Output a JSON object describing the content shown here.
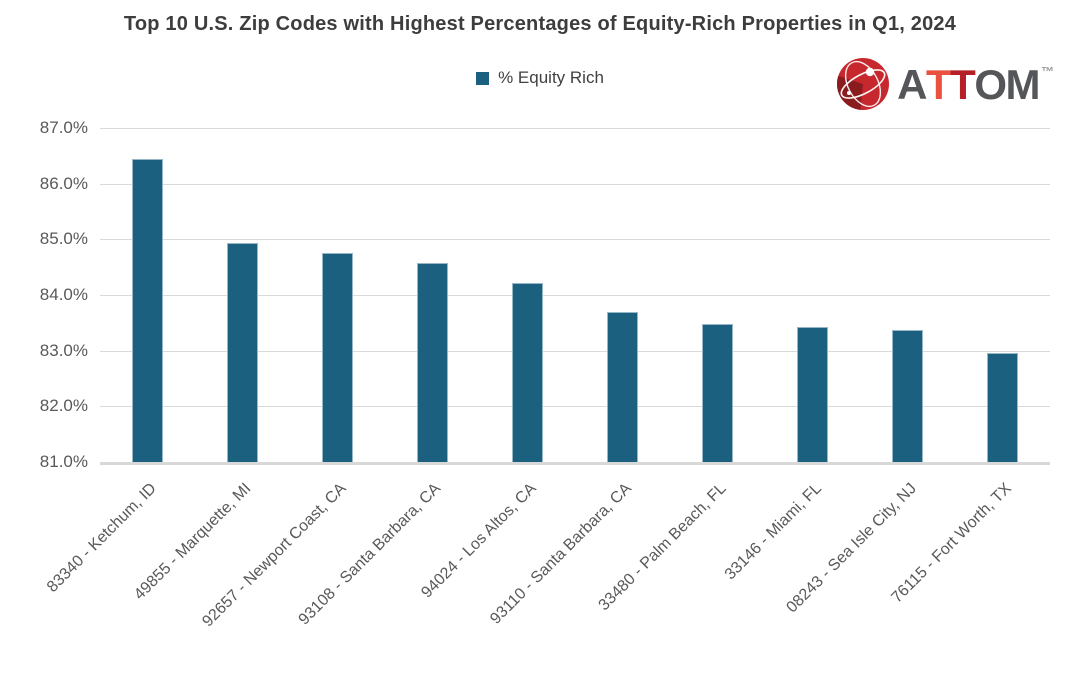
{
  "chart_data": {
    "type": "bar",
    "title": "Top 10 U.S. Zip Codes with Highest Percentages of Equity-Rich Properties in Q1, 2024",
    "series_name": "% Equity Rich",
    "categories": [
      "83340 - Ketchum, ID",
      "49855 - Marquette, MI",
      "92657 - Newport Coast, CA",
      "93108 - Santa Barbara, CA",
      "94024 - Los Altos, CA",
      "93110 - Santa Barbara, CA",
      "33480 - Palm Beach, FL",
      "33146 - Miami, FL",
      "08243 - Sea Isle City, NJ",
      "76115 - Fort Worth, TX"
    ],
    "values": [
      86.45,
      84.93,
      84.76,
      84.57,
      84.22,
      83.69,
      83.48,
      83.43,
      83.38,
      82.96
    ],
    "ylim": [
      81,
      87
    ],
    "yticks": [
      "87.0%",
      "86.0%",
      "85.0%",
      "84.0%",
      "83.0%",
      "82.0%",
      "81.0%"
    ],
    "xlabel": "",
    "ylabel": "",
    "grid": true,
    "legend_position": "top-center",
    "x_label_rotation_deg": 45,
    "bar_color": "#1c6080",
    "gridline_color": "#dadada",
    "axis_text_color": "#595959"
  },
  "brand": {
    "name": "ATTOM",
    "letters": [
      "A",
      "T",
      "T",
      "O",
      "M"
    ],
    "letter_colors": [
      "#55565a",
      "#e95140",
      "#b42025",
      "#55565a",
      "#55565a"
    ],
    "trademark": "™",
    "globe_color": "#c7282d",
    "globe_dark_color": "#8a1c20"
  }
}
